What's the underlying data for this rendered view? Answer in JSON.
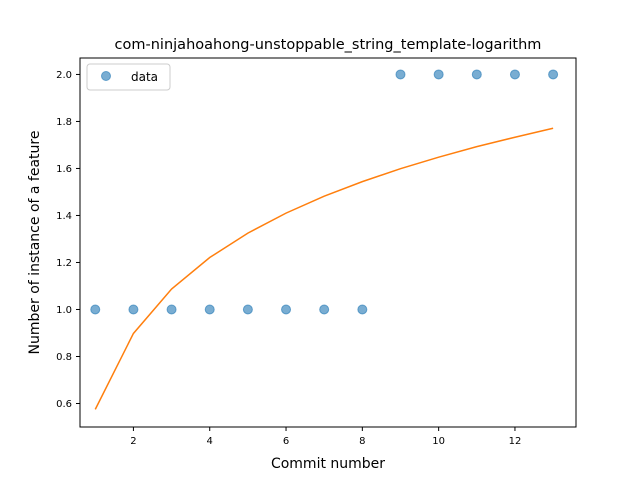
{
  "chart_data": {
    "type": "scatter",
    "title": "com-ninjahoahong-unstoppable_string_template-logarithm",
    "xlabel": "Commit number",
    "ylabel": "Number of instance of a feature",
    "xlim": [
      0.6,
      13.6
    ],
    "ylim": [
      0.5,
      2.07
    ],
    "xticks": [
      2,
      4,
      6,
      8,
      10,
      12
    ],
    "yticks": [
      0.6,
      0.8,
      1.0,
      1.2,
      1.4,
      1.6,
      1.8,
      2.0
    ],
    "xtick_labels": [
      "2",
      "4",
      "6",
      "8",
      "10",
      "12"
    ],
    "ytick_labels": [
      "0.6",
      "0.8",
      "1.0",
      "1.2",
      "1.4",
      "1.6",
      "1.8",
      "2.0"
    ],
    "legend_position": "top-left",
    "grid": false,
    "series": [
      {
        "name": "data",
        "kind": "scatter",
        "color": "#1f77b4",
        "x": [
          1,
          2,
          3,
          4,
          5,
          6,
          7,
          8,
          9,
          10,
          11,
          12,
          13
        ],
        "y": [
          1.0,
          1.0,
          1.0,
          1.0,
          1.0,
          1.0,
          1.0,
          1.0,
          2.0,
          2.0,
          2.0,
          2.0,
          2.0
        ]
      },
      {
        "kind": "line",
        "color": "#ff7f0e",
        "x": [
          1,
          2,
          3,
          4,
          5,
          6,
          7,
          8,
          9,
          10,
          11,
          12,
          13
        ],
        "y": [
          0.575,
          0.898,
          1.087,
          1.221,
          1.325,
          1.41,
          1.482,
          1.544,
          1.599,
          1.648,
          1.693,
          1.733,
          1.771
        ]
      }
    ]
  }
}
